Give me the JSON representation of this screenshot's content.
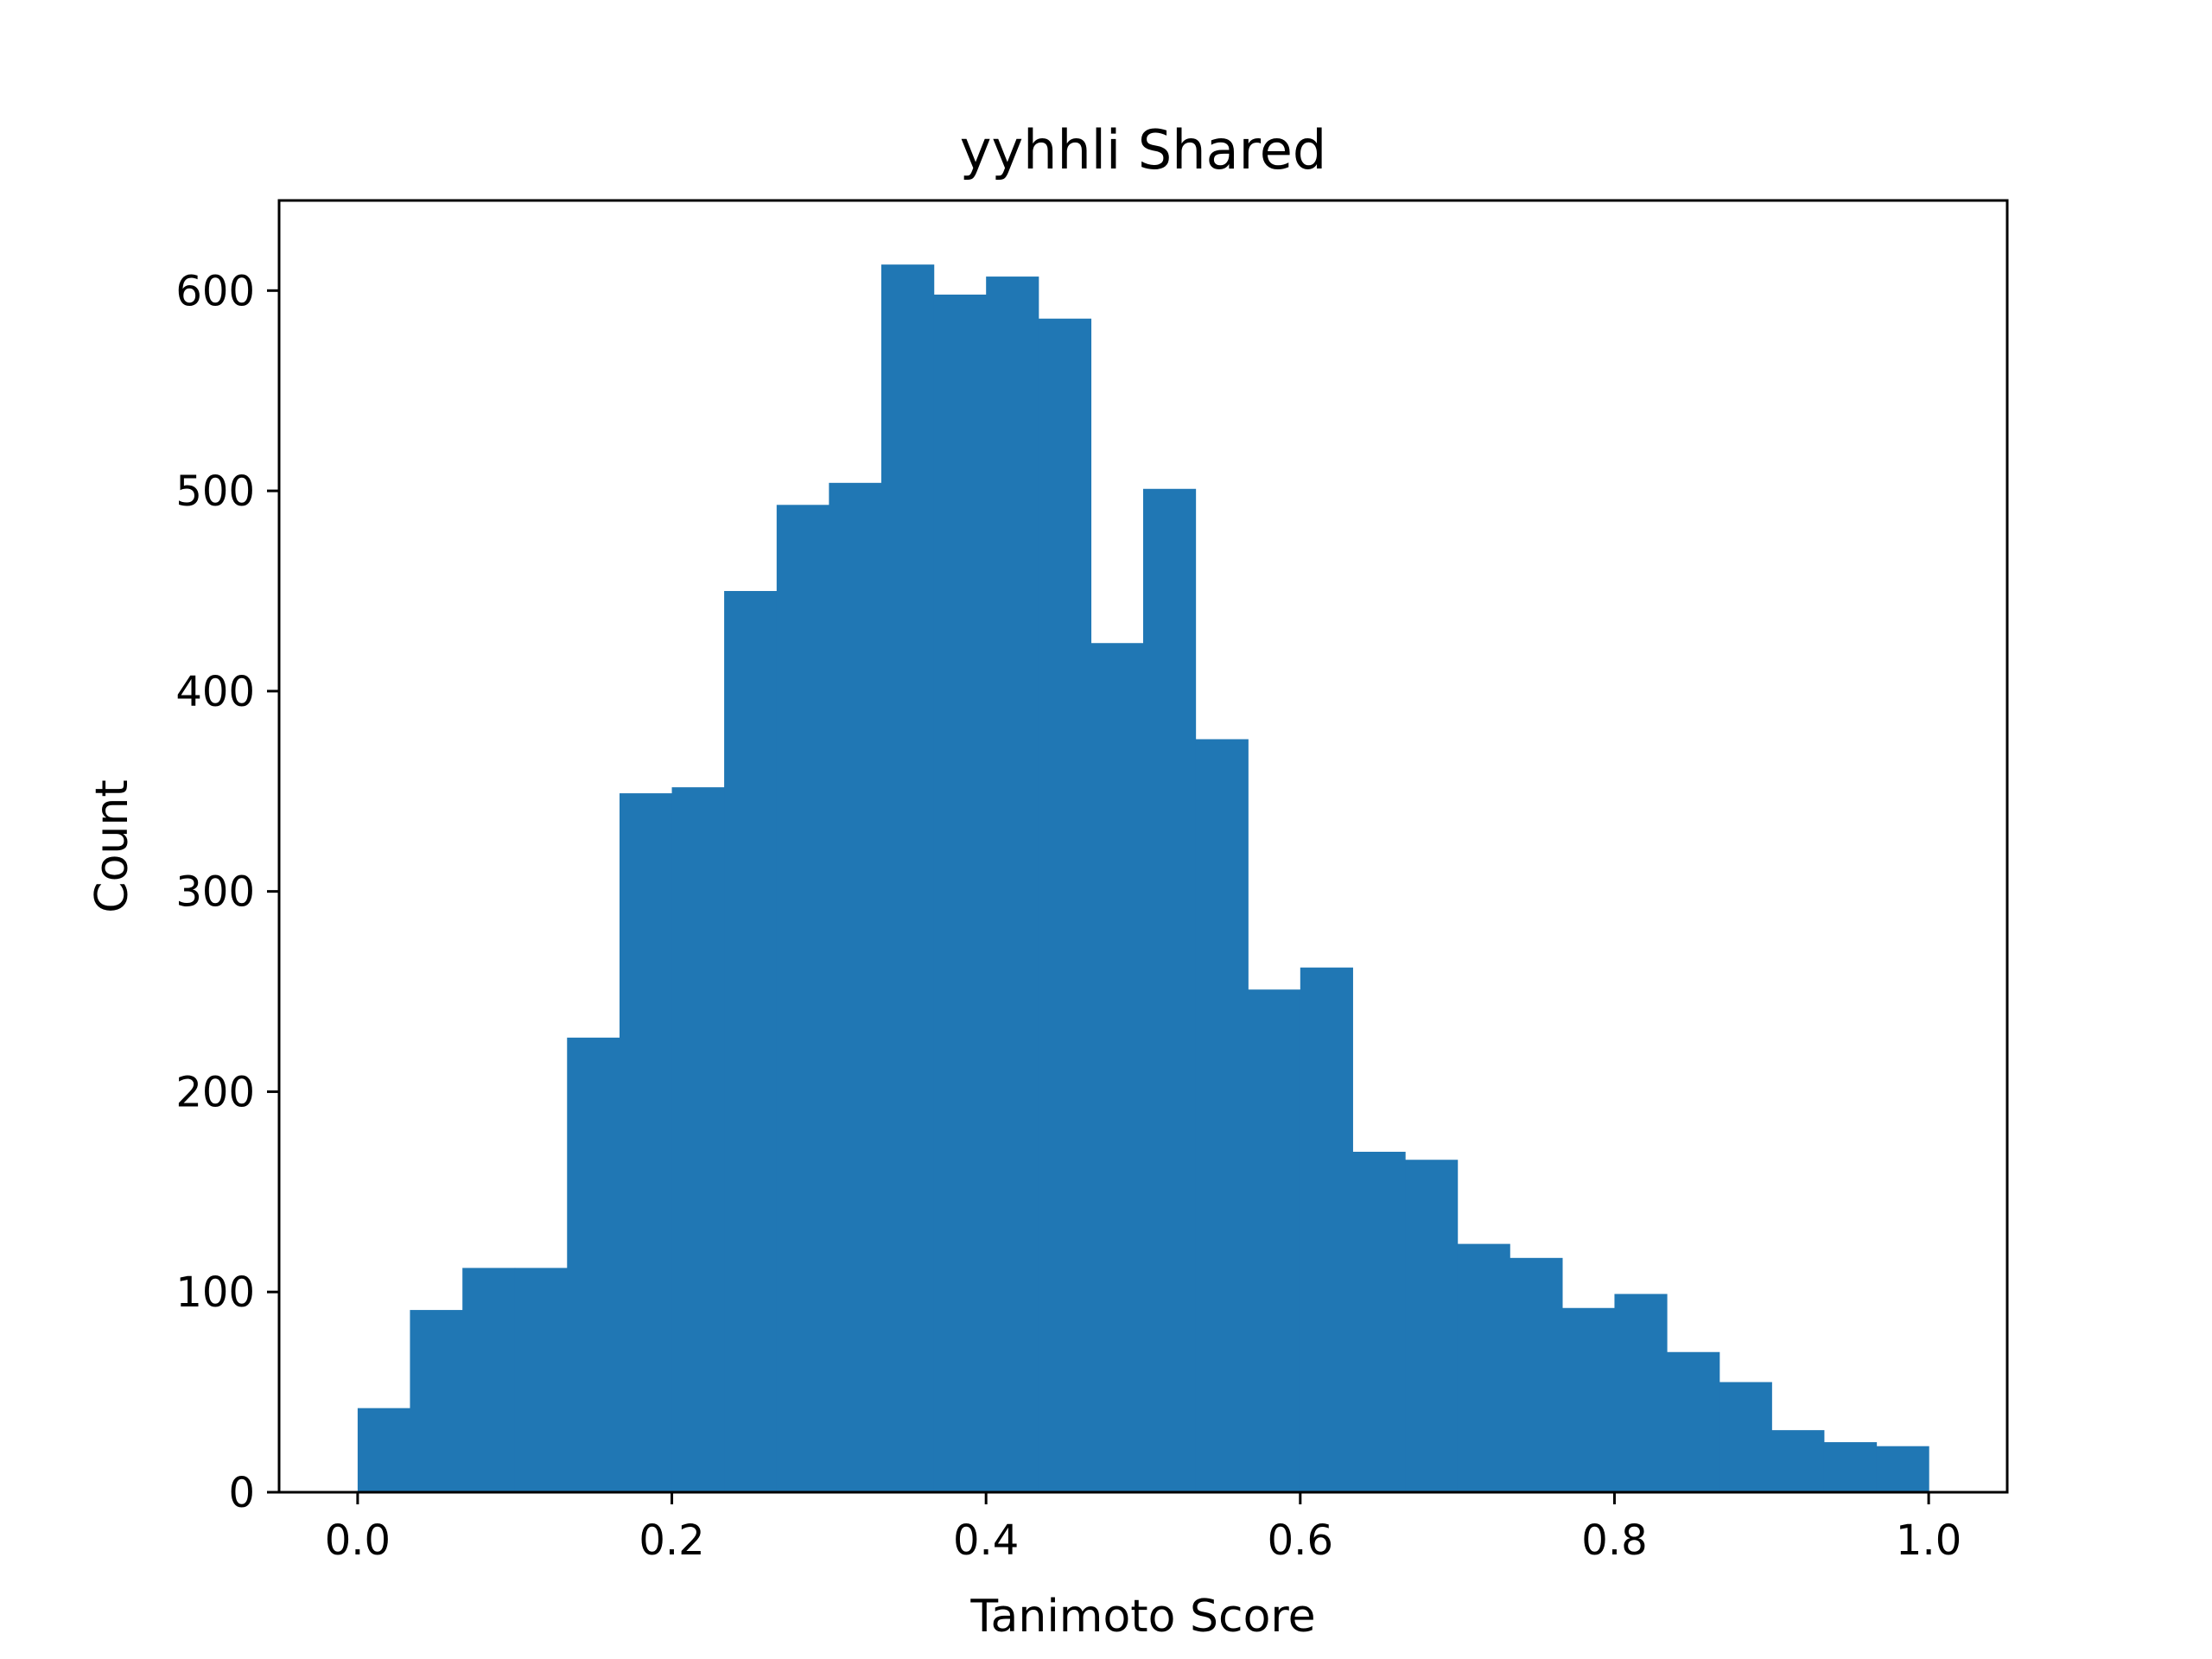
{
  "chart_data": {
    "type": "bar",
    "title": "yyhhli Shared",
    "xlabel": "Tanimoto Score",
    "ylabel": "Count",
    "xlim": [
      -0.05,
      1.05
    ],
    "ylim": [
      0,
      645
    ],
    "xticks": [
      0.0,
      0.2,
      0.4,
      0.6,
      0.8,
      1.0
    ],
    "xtick_labels": [
      "0.0",
      "0.2",
      "0.4",
      "0.6",
      "0.8",
      "1.0"
    ],
    "yticks": [
      0,
      100,
      200,
      300,
      400,
      500,
      600
    ],
    "ytick_labels": [
      "0",
      "100",
      "200",
      "300",
      "400",
      "500",
      "600"
    ],
    "bin_edges": [
      0.0,
      0.0333,
      0.0667,
      0.1,
      0.1333,
      0.1667,
      0.2,
      0.2333,
      0.2667,
      0.3,
      0.3333,
      0.3667,
      0.4,
      0.4333,
      0.4667,
      0.5,
      0.5333,
      0.5667,
      0.6,
      0.6333,
      0.6667,
      0.7,
      0.7333,
      0.7667,
      0.8,
      0.8333,
      0.8667,
      0.9,
      0.9333,
      0.9667,
      1.0
    ],
    "values": [
      42,
      91,
      112,
      112,
      227,
      349,
      352,
      450,
      493,
      504,
      613,
      598,
      607,
      586,
      424,
      501,
      376,
      251,
      262,
      170,
      166,
      124,
      117,
      92,
      99,
      70,
      55,
      31,
      25,
      23
    ],
    "color": "#2077b4",
    "grid": false,
    "legend": false
  }
}
